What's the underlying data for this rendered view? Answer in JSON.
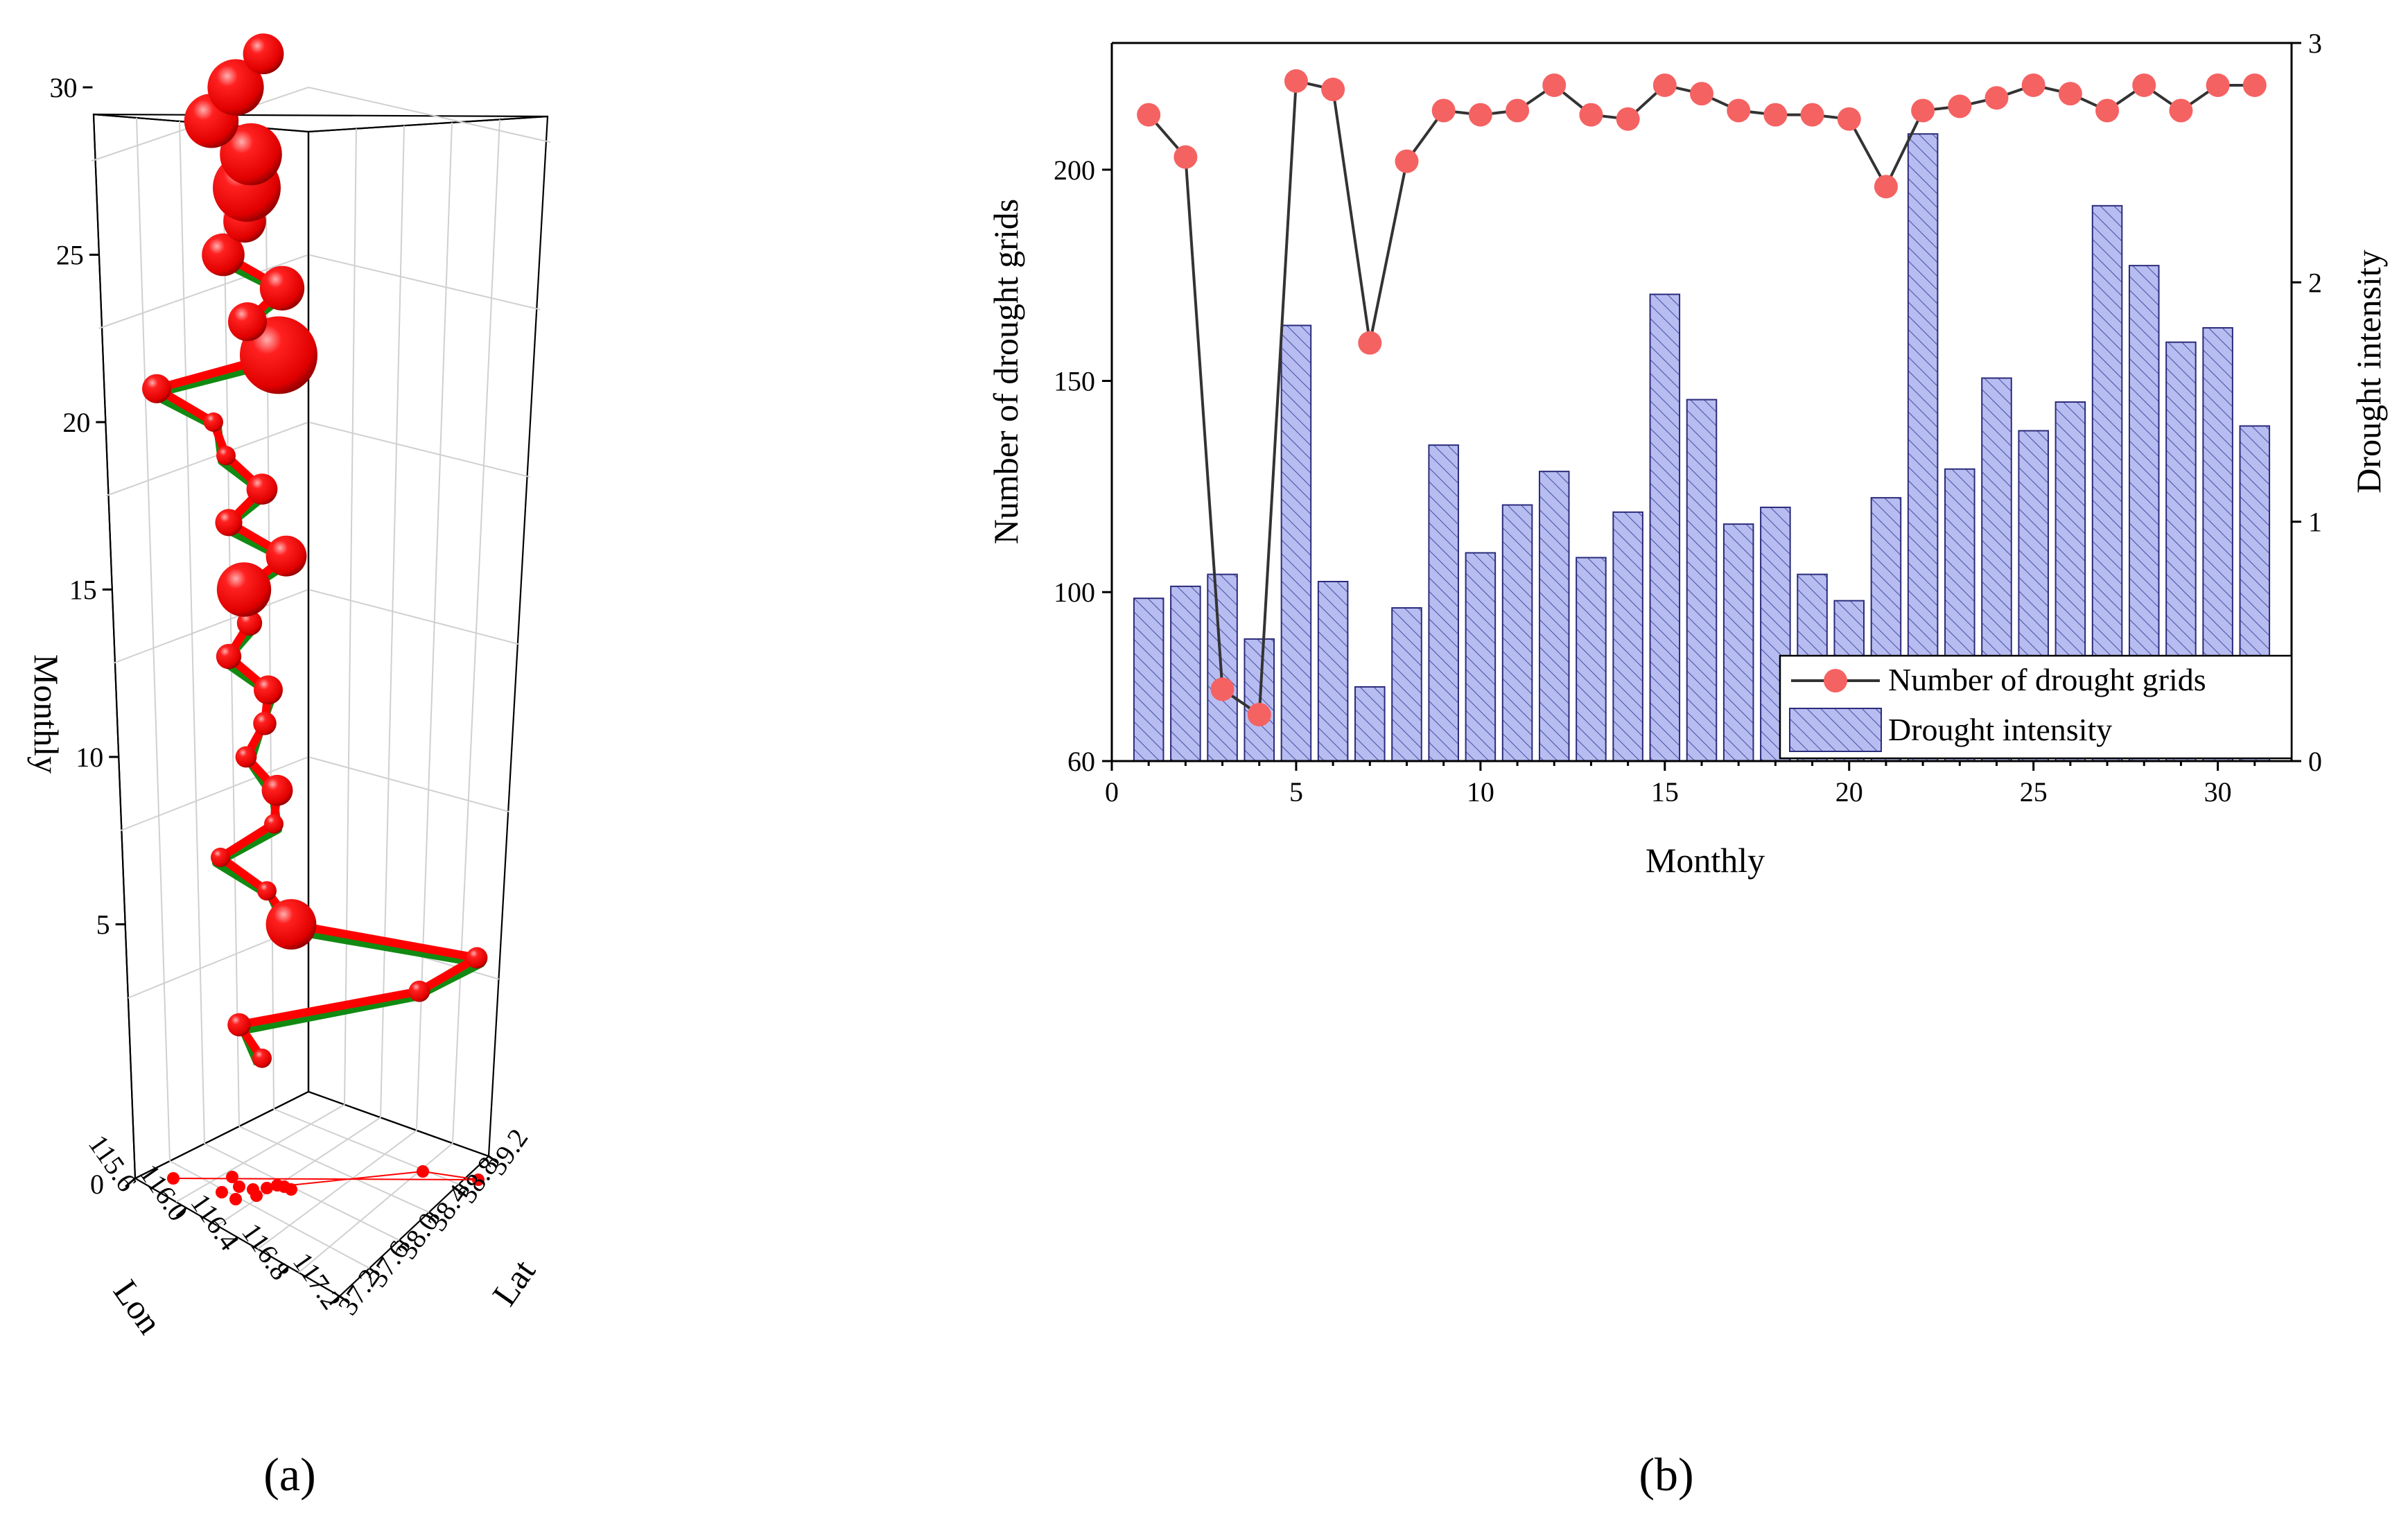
{
  "panel_labels": {
    "a": "(a)",
    "b": "(b)"
  },
  "colors": {
    "red_marker": "#ff0000",
    "red_dark": "#b00000",
    "green_line": "#128a12",
    "b_marker": "#f56262",
    "b_line": "#333333",
    "bar_fill": "#b7bdf0",
    "bar_hatch": "#4b55a8",
    "bar_edge": "#2b2b7a"
  },
  "chart_data": [
    {
      "type": "scatter3d",
      "panel": "(a)",
      "axes": {
        "z": {
          "label": "Monthly",
          "ticks": [
            "5",
            "10",
            "15",
            "20",
            "25",
            "30"
          ]
        },
        "lon": {
          "label": "Lon",
          "ticks": [
            "115.6",
            "116.0",
            "116.4",
            "116.8",
            "117.2"
          ]
        },
        "lat": {
          "label": "Lat",
          "ticks": [
            "37.2",
            "37.6",
            "38.0",
            "38.4",
            "38.8",
            "39.2"
          ]
        },
        "zero_tick": "0"
      },
      "trajectory": [
        {
          "month": 1,
          "size": 1
        },
        {
          "month": 2,
          "size": 1.2
        },
        {
          "month": 3,
          "size": 1.1
        },
        {
          "month": 4,
          "size": 1.1
        },
        {
          "month": 5,
          "size": 2.6
        },
        {
          "month": 6,
          "size": 1
        },
        {
          "month": 7,
          "size": 1
        },
        {
          "month": 8,
          "size": 1
        },
        {
          "month": 9,
          "size": 1.6
        },
        {
          "month": 10,
          "size": 1.1
        },
        {
          "month": 11,
          "size": 1.2
        },
        {
          "month": 12,
          "size": 1.5
        },
        {
          "month": 13,
          "size": 1.3
        },
        {
          "month": 14,
          "size": 1.3
        },
        {
          "month": 15,
          "size": 2.8
        },
        {
          "month": 16,
          "size": 2.1
        },
        {
          "month": 17,
          "size": 1.4
        },
        {
          "month": 18,
          "size": 1.6
        },
        {
          "month": 19,
          "size": 1
        },
        {
          "month": 20,
          "size": 1
        },
        {
          "month": 21,
          "size": 1.5
        },
        {
          "month": 22,
          "size": 4.0
        },
        {
          "month": 23,
          "size": 2.0
        },
        {
          "month": 24,
          "size": 2.3
        },
        {
          "month": 25,
          "size": 2.2
        },
        {
          "month": 26,
          "size": 2.2
        },
        {
          "month": 27,
          "size": 3.5
        },
        {
          "month": 28,
          "size": 3.2
        },
        {
          "month": 29,
          "size": 2.8
        },
        {
          "month": 30,
          "size": 2.9
        },
        {
          "month": 31,
          "size": 2.1
        }
      ]
    },
    {
      "type": "bar+line",
      "panel": "(b)",
      "xlabel": "Monthly",
      "ylabel_left": "Number of drought grids",
      "ylabel_right": "Drought intensity",
      "xlim": [
        0,
        32
      ],
      "xticks": [
        "0",
        "5",
        "10",
        "15",
        "20",
        "25",
        "30"
      ],
      "ylim_left": [
        60,
        230
      ],
      "yticks_left": [
        "60",
        "100",
        "150",
        "200"
      ],
      "ylim_right": [
        0,
        3
      ],
      "yticks_right": [
        "0",
        "1",
        "2",
        "3"
      ],
      "legend": {
        "placement": "bottom-right",
        "line_label": "Number of drought grids",
        "bar_label": "Drought intensity"
      },
      "months": [
        1,
        2,
        3,
        4,
        5,
        6,
        7,
        8,
        9,
        10,
        11,
        12,
        13,
        14,
        15,
        16,
        17,
        18,
        19,
        20,
        21,
        22,
        23,
        24,
        25,
        26,
        27,
        28,
        29,
        30,
        31
      ],
      "drought_grids": [
        213,
        203,
        77,
        71,
        221,
        219,
        159,
        202,
        214,
        213,
        214,
        220,
        213,
        212,
        220,
        218,
        214,
        213,
        213,
        212,
        196,
        214,
        215,
        217,
        220,
        218,
        214,
        220,
        214,
        220,
        220
      ],
      "drought_intensity": [
        0.68,
        0.73,
        0.78,
        0.51,
        1.82,
        0.75,
        0.31,
        0.64,
        1.32,
        0.87,
        1.07,
        1.21,
        0.85,
        1.04,
        1.95,
        1.51,
        0.99,
        1.06,
        0.78,
        0.67,
        1.1,
        2.62,
        1.22,
        1.6,
        1.38,
        1.5,
        2.32,
        2.07,
        1.75,
        1.81,
        1.4
      ]
    }
  ]
}
